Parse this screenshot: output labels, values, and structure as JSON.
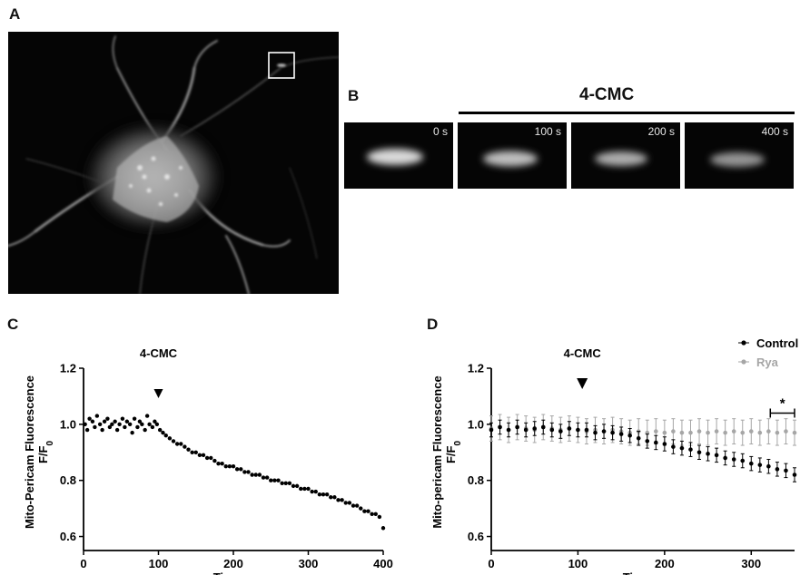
{
  "panels": {
    "a": "A",
    "b": "B",
    "c": "C",
    "d": "D"
  },
  "panel_b": {
    "treatment_label": "4-CMC",
    "frames": [
      {
        "label": "0 s",
        "intensity": 1.0
      },
      {
        "label": "100 s",
        "intensity": 0.88
      },
      {
        "label": "200 s",
        "intensity": 0.8
      },
      {
        "label": "400 s",
        "intensity": 0.68
      }
    ]
  },
  "colors": {
    "control": "#000000",
    "rya": "#a6a6a6"
  },
  "chart_data": [
    {
      "type": "scatter",
      "id": "C",
      "annotation": "4-CMC",
      "annotation_x": 100,
      "xlabel": "Time, s",
      "ylabel_line1": "Mito-Pericam Fluorescence",
      "ylabel_line2": "F/F",
      "ylabel_sub": "0",
      "xlim": [
        0,
        400
      ],
      "ylim": [
        0.55,
        1.2
      ],
      "xticks": [
        0,
        100,
        200,
        300,
        400
      ],
      "yticks": [
        0.6,
        0.8,
        1.0,
        1.2
      ],
      "ytick_labels": [
        "0.6",
        "0.8",
        "1.0",
        "1.2"
      ],
      "series": [
        {
          "baseline": {
            "x_start": 0,
            "x_end": 100,
            "y": 1.0
          },
          "decay": {
            "x_start": 100,
            "x_end": 400,
            "y_start": 0.98,
            "y_end": 0.65
          },
          "points": [
            [
              2,
              1.0
            ],
            [
              5,
              0.98
            ],
            [
              8,
              1.02
            ],
            [
              12,
              1.01
            ],
            [
              15,
              0.99
            ],
            [
              18,
              1.03
            ],
            [
              22,
              1.0
            ],
            [
              25,
              0.98
            ],
            [
              28,
              1.01
            ],
            [
              32,
              1.02
            ],
            [
              35,
              0.99
            ],
            [
              38,
              1.0
            ],
            [
              42,
              1.01
            ],
            [
              45,
              0.98
            ],
            [
              48,
              1.0
            ],
            [
              52,
              1.02
            ],
            [
              55,
              0.99
            ],
            [
              58,
              1.01
            ],
            [
              62,
              1.0
            ],
            [
              65,
              0.97
            ],
            [
              68,
              1.02
            ],
            [
              72,
              0.99
            ],
            [
              75,
              1.01
            ],
            [
              78,
              1.0
            ],
            [
              82,
              0.98
            ],
            [
              85,
              1.03
            ],
            [
              88,
              1.0
            ],
            [
              92,
              0.99
            ],
            [
              95,
              1.01
            ],
            [
              98,
              1.0
            ],
            [
              102,
              0.98
            ],
            [
              106,
              0.97
            ],
            [
              110,
              0.96
            ],
            [
              115,
              0.95
            ],
            [
              120,
              0.94
            ],
            [
              125,
              0.93
            ],
            [
              130,
              0.93
            ],
            [
              135,
              0.92
            ],
            [
              140,
              0.91
            ],
            [
              145,
              0.9
            ],
            [
              150,
              0.9
            ],
            [
              155,
              0.89
            ],
            [
              160,
              0.89
            ],
            [
              165,
              0.88
            ],
            [
              170,
              0.88
            ],
            [
              175,
              0.87
            ],
            [
              180,
              0.86
            ],
            [
              185,
              0.86
            ],
            [
              190,
              0.85
            ],
            [
              195,
              0.85
            ],
            [
              200,
              0.85
            ],
            [
              205,
              0.84
            ],
            [
              210,
              0.84
            ],
            [
              215,
              0.83
            ],
            [
              220,
              0.83
            ],
            [
              225,
              0.82
            ],
            [
              230,
              0.82
            ],
            [
              235,
              0.82
            ],
            [
              240,
              0.81
            ],
            [
              245,
              0.81
            ],
            [
              250,
              0.8
            ],
            [
              255,
              0.8
            ],
            [
              260,
              0.8
            ],
            [
              265,
              0.79
            ],
            [
              270,
              0.79
            ],
            [
              275,
              0.79
            ],
            [
              280,
              0.78
            ],
            [
              285,
              0.78
            ],
            [
              290,
              0.77
            ],
            [
              295,
              0.77
            ],
            [
              300,
              0.77
            ],
            [
              305,
              0.76
            ],
            [
              310,
              0.76
            ],
            [
              315,
              0.75
            ],
            [
              320,
              0.75
            ],
            [
              325,
              0.75
            ],
            [
              330,
              0.74
            ],
            [
              335,
              0.74
            ],
            [
              340,
              0.73
            ],
            [
              345,
              0.73
            ],
            [
              350,
              0.72
            ],
            [
              355,
              0.72
            ],
            [
              360,
              0.71
            ],
            [
              365,
              0.71
            ],
            [
              370,
              0.7
            ],
            [
              375,
              0.69
            ],
            [
              380,
              0.69
            ],
            [
              385,
              0.68
            ],
            [
              390,
              0.68
            ],
            [
              395,
              0.67
            ],
            [
              400,
              0.63
            ]
          ]
        }
      ]
    },
    {
      "type": "scatter",
      "id": "D",
      "annotation": "4-CMC",
      "annotation_x": 105,
      "xlabel": "Time, s",
      "ylabel_line1": "Mito-pericam Fluorescence",
      "ylabel_line2": "F/F",
      "ylabel_sub": "0",
      "xlim": [
        0,
        350
      ],
      "ylim": [
        0.55,
        1.2
      ],
      "xticks": [
        0,
        100,
        200,
        300
      ],
      "yticks": [
        0.6,
        0.8,
        1.0,
        1.2
      ],
      "ytick_labels": [
        "0.6",
        "0.8",
        "1.0",
        "1.2"
      ],
      "significance": {
        "label": "*",
        "x_start": 322,
        "x_end": 350,
        "y": 1.04
      },
      "legend": {
        "position": "top-right"
      },
      "series": [
        {
          "name": "Control",
          "color_key": "control",
          "baseline": {
            "x_start": 0,
            "x_end": 170,
            "y": 0.985
          },
          "decay": {
            "x_start": 170,
            "x_end": 350,
            "y_start": 0.95,
            "y_end": 0.82
          },
          "error": 0.025,
          "points": [
            [
              0,
              0.98
            ],
            [
              10,
              0.99
            ],
            [
              20,
              0.98
            ],
            [
              30,
              0.99
            ],
            [
              40,
              0.98
            ],
            [
              50,
              0.985
            ],
            [
              60,
              0.99
            ],
            [
              70,
              0.98
            ],
            [
              80,
              0.975
            ],
            [
              90,
              0.985
            ],
            [
              100,
              0.98
            ],
            [
              110,
              0.98
            ],
            [
              120,
              0.97
            ],
            [
              130,
              0.975
            ],
            [
              140,
              0.97
            ],
            [
              150,
              0.965
            ],
            [
              160,
              0.96
            ],
            [
              170,
              0.95
            ],
            [
              180,
              0.94
            ],
            [
              190,
              0.935
            ],
            [
              200,
              0.93
            ],
            [
              210,
              0.92
            ],
            [
              220,
              0.915
            ],
            [
              230,
              0.91
            ],
            [
              240,
              0.9
            ],
            [
              250,
              0.895
            ],
            [
              260,
              0.89
            ],
            [
              270,
              0.88
            ],
            [
              280,
              0.875
            ],
            [
              290,
              0.87
            ],
            [
              300,
              0.86
            ],
            [
              310,
              0.855
            ],
            [
              320,
              0.85
            ],
            [
              330,
              0.84
            ],
            [
              340,
              0.835
            ],
            [
              350,
              0.82
            ]
          ]
        },
        {
          "name": "Rya",
          "color_key": "rya",
          "baseline": {
            "x_start": 0,
            "x_end": 350,
            "y": 0.98
          },
          "error": 0.045,
          "points": [
            [
              0,
              0.985
            ],
            [
              10,
              0.99
            ],
            [
              20,
              0.98
            ],
            [
              30,
              0.99
            ],
            [
              40,
              0.985
            ],
            [
              50,
              0.98
            ],
            [
              60,
              0.99
            ],
            [
              70,
              0.985
            ],
            [
              80,
              0.98
            ],
            [
              90,
              0.985
            ],
            [
              100,
              0.98
            ],
            [
              110,
              0.975
            ],
            [
              120,
              0.98
            ],
            [
              130,
              0.975
            ],
            [
              140,
              0.98
            ],
            [
              150,
              0.975
            ],
            [
              160,
              0.97
            ],
            [
              170,
              0.975
            ],
            [
              180,
              0.97
            ],
            [
              190,
              0.975
            ],
            [
              200,
              0.97
            ],
            [
              210,
              0.975
            ],
            [
              220,
              0.97
            ],
            [
              230,
              0.97
            ],
            [
              240,
              0.975
            ],
            [
              250,
              0.97
            ],
            [
              260,
              0.975
            ],
            [
              270,
              0.97
            ],
            [
              280,
              0.975
            ],
            [
              290,
              0.97
            ],
            [
              300,
              0.975
            ],
            [
              310,
              0.97
            ],
            [
              320,
              0.975
            ],
            [
              330,
              0.97
            ],
            [
              340,
              0.975
            ],
            [
              350,
              0.97
            ]
          ]
        }
      ]
    }
  ]
}
